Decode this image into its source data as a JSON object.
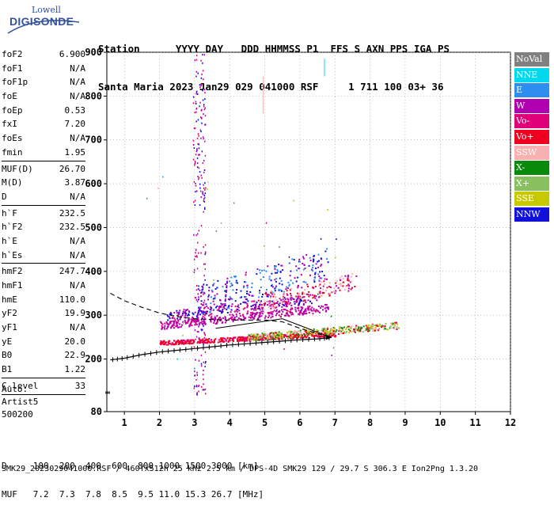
{
  "logo": {
    "top": "Lowell",
    "main": "DIGISONDE"
  },
  "header": {
    "line1": "Station      YYYY DAY   DDD HHMMSS P1  FFS S AXN PPS IGA PS",
    "line2": "Santa Maria 2023 Jan29 029 041000 RSF     1 711 100 03+ 36"
  },
  "params": [
    {
      "label": "foF2",
      "value": "6.900"
    },
    {
      "label": "foF1",
      "value": "N/A"
    },
    {
      "label": "foF1p",
      "value": "N/A"
    },
    {
      "label": "foE",
      "value": "N/A"
    },
    {
      "label": "foEp",
      "value": "0.53"
    },
    {
      "label": "fxI",
      "value": "7.20"
    },
    {
      "label": "foEs",
      "value": "N/A"
    },
    {
      "label": "fmin",
      "value": "1.95"
    },
    {
      "sep": true
    },
    {
      "label": "MUF(D)",
      "value": "26.70"
    },
    {
      "label": "M(D)",
      "value": "3.87"
    },
    {
      "label": "D",
      "value": "N/A"
    },
    {
      "sep": true
    },
    {
      "label": "h`F",
      "value": "232.5"
    },
    {
      "label": "h`F2",
      "value": "232.5"
    },
    {
      "label": "h`E",
      "value": "N/A"
    },
    {
      "label": "h`Es",
      "value": "N/A"
    },
    {
      "sep": true
    },
    {
      "label": "hmF2",
      "value": "247.7"
    },
    {
      "label": "hmF1",
      "value": "N/A"
    },
    {
      "label": "hmE",
      "value": "110.0"
    },
    {
      "label": "yF2",
      "value": "19.9"
    },
    {
      "label": "yF1",
      "value": "N/A"
    },
    {
      "label": "yE",
      "value": "20.0"
    },
    {
      "label": "B0",
      "value": "22.9"
    },
    {
      "label": "B1",
      "value": "1.22"
    },
    {
      "sep": true
    },
    {
      "label": "C-level",
      "value": "33"
    },
    {
      "sep": true
    }
  ],
  "extra": {
    "auto": "Auto:",
    "artist": "Artist5",
    "code": "500200"
  },
  "legend": [
    {
      "label": "NoVal",
      "color": "#808080"
    },
    {
      "label": "NNE",
      "color": "#00d8f0"
    },
    {
      "label": "E",
      "color": "#2e8ef0"
    },
    {
      "label": "W",
      "color": "#b000b0"
    },
    {
      "label": "Vo-",
      "color": "#e0007a"
    },
    {
      "label": "Vo+",
      "color": "#f00020"
    },
    {
      "label": "SSW",
      "color": "#f8b0b0"
    },
    {
      "label": "X-",
      "color": "#0a8a0a"
    },
    {
      "label": "X+",
      "color": "#88c060"
    },
    {
      "label": "SSE",
      "color": "#c8c800"
    },
    {
      "label": "NNW",
      "color": "#1010d8"
    }
  ],
  "bottom": {
    "line1": "D     100  200  400  600  800 1000 1500 3000 [km]",
    "line2": "MUF   7.2  7.3  7.8  8.5  9.5 11.0 15.3 26.7 [MHz]"
  },
  "footer": "SMK29_2023029041000.RSF / 460fx512h 25 kHz 2.5 km / DPS-4D SMK29 129 / 29.7 S 306.3 E Ion2Png 1.3.20",
  "chart_data": {
    "type": "scatter",
    "x_ticks": [
      "1",
      "2",
      "3",
      "4",
      "5",
      "6",
      "7",
      "8",
      "9",
      "10",
      "11",
      "12"
    ],
    "y_ticks": [
      "80",
      "200",
      "300",
      "400",
      "500",
      "600",
      "700",
      "800",
      "900"
    ],
    "xlim": [
      0.5,
      12
    ],
    "ylim": [
      80,
      900
    ],
    "xlabel": "",
    "ylabel": "",
    "grid": "dotted",
    "trace_points": [
      [
        0.6,
        198
      ],
      [
        1.0,
        202
      ],
      [
        1.5,
        210
      ],
      [
        2.0,
        216
      ],
      [
        2.5,
        220
      ],
      [
        3.0,
        224
      ],
      [
        3.5,
        228
      ],
      [
        4.0,
        232
      ],
      [
        4.5,
        235
      ],
      [
        5.0,
        238
      ],
      [
        5.5,
        241
      ],
      [
        6.0,
        244
      ],
      [
        6.5,
        246
      ],
      [
        6.9,
        249
      ]
    ],
    "profile_curve": [
      [
        0.6,
        350
      ],
      [
        1.0,
        333
      ],
      [
        1.5,
        318
      ],
      [
        2.0,
        305
      ],
      [
        2.5,
        297
      ],
      [
        3.0,
        292
      ],
      [
        3.5,
        290
      ],
      [
        4.0,
        289
      ],
      [
        4.5,
        289
      ],
      [
        5.0,
        289
      ],
      [
        5.5,
        285
      ],
      [
        6.0,
        270
      ],
      [
        6.5,
        258
      ],
      [
        6.9,
        249
      ]
    ]
  }
}
